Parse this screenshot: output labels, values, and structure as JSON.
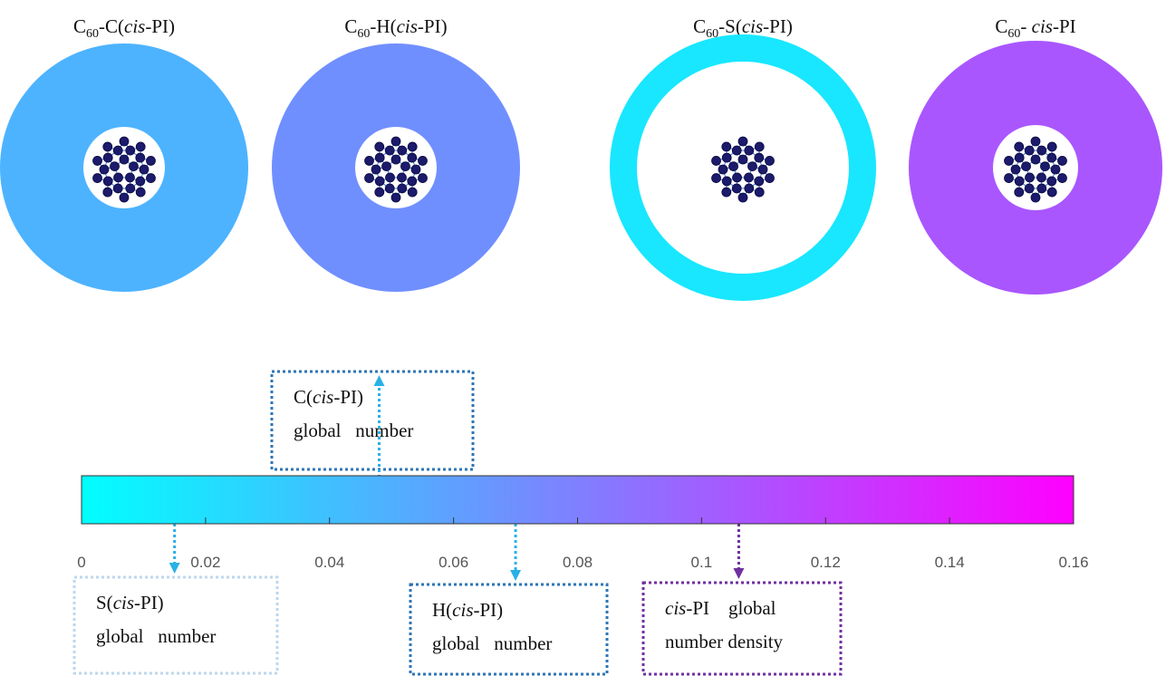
{
  "chart_data": {
    "type": "ring-map",
    "colormap": "cool",
    "panels": [
      {
        "title": [
          {
            "text": "C"
          },
          {
            "text": "60",
            "sub": true
          },
          {
            "text": "-C("
          },
          {
            "text": "cis",
            "italic": true
          },
          {
            "text": "-PI)"
          }
        ],
        "value": 0.048,
        "label": [
          [
            {
              "text": "C("
            },
            {
              "text": "cis",
              "italic": true
            },
            {
              "text": "-PI)"
            }
          ],
          [
            {
              "text": "global   number"
            }
          ]
        ]
      },
      {
        "title": [
          {
            "text": "C"
          },
          {
            "text": "60",
            "sub": true
          },
          {
            "text": "-H("
          },
          {
            "text": "cis",
            "italic": true
          },
          {
            "text": "-PI)"
          }
        ],
        "value": 0.07,
        "label": [
          [
            {
              "text": "H("
            },
            {
              "text": "cis",
              "italic": true
            },
            {
              "text": "-PI)"
            }
          ],
          [
            {
              "text": "global   number"
            }
          ]
        ]
      },
      {
        "title": [
          {
            "text": "C"
          },
          {
            "text": "60",
            "sub": true
          },
          {
            "text": "-S("
          },
          {
            "text": "cis",
            "italic": true
          },
          {
            "text": "-PI)"
          }
        ],
        "value": 0.015,
        "label": [
          [
            {
              "text": "S("
            },
            {
              "text": "cis",
              "italic": true
            },
            {
              "text": "-PI)"
            }
          ],
          [
            {
              "text": "global   number"
            }
          ]
        ]
      },
      {
        "title": [
          {
            "text": "C"
          },
          {
            "text": "60",
            "sub": true
          },
          {
            "text": "- "
          },
          {
            "text": "cis",
            "italic": true
          },
          {
            "text": "-PI"
          }
        ],
        "value": 0.106,
        "label": [
          [
            {
              "text": "cis",
              "italic": true
            },
            {
              "text": "-PI    global"
            }
          ],
          [
            {
              "text": "number density"
            }
          ]
        ]
      }
    ],
    "colorbar": {
      "clim": [
        0,
        0.16
      ],
      "ticks": [
        0,
        0.02,
        0.04,
        0.06,
        0.08,
        0.1,
        0.12,
        0.14,
        0.16
      ]
    }
  }
}
